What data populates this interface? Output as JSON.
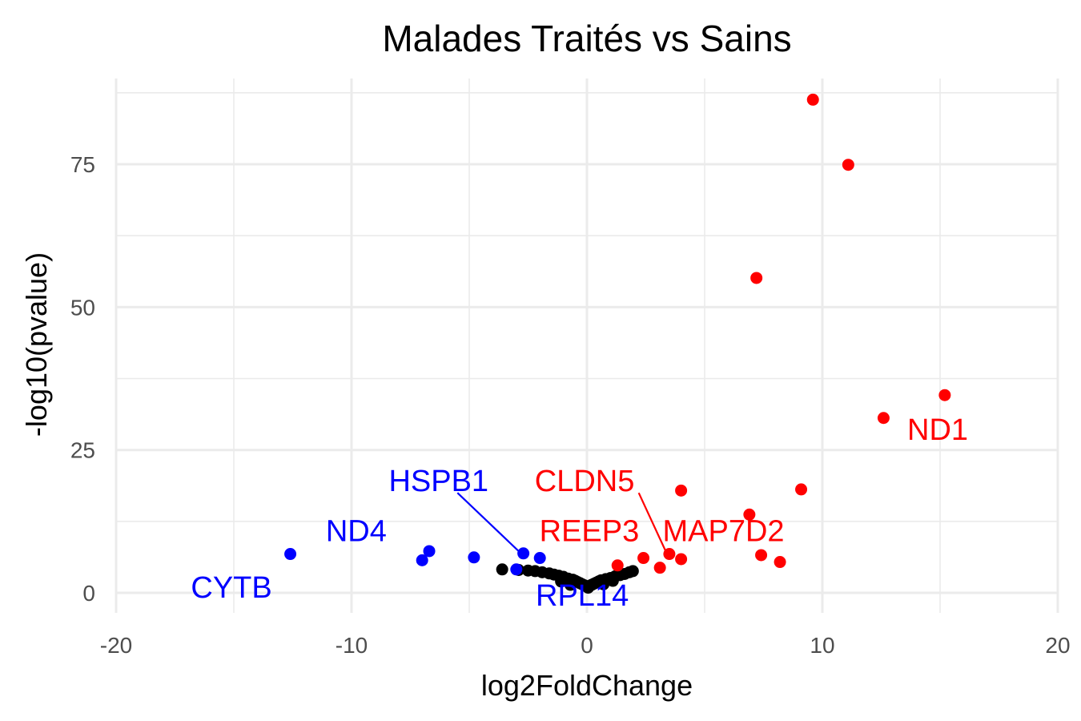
{
  "chart_data": {
    "type": "scatter",
    "title": "Malades Traités vs Sains",
    "xlabel": "log2FoldChange",
    "ylabel": "-log10(pvalue)",
    "xlim": [
      -20,
      20
    ],
    "ylim": [
      -3.5,
      90
    ],
    "xticks": [
      -20,
      -10,
      0,
      10,
      20
    ],
    "yticks": [
      0,
      25,
      50,
      75
    ],
    "grid": true,
    "colors": {
      "up": "#ff0000",
      "down": "#0000ff",
      "ns": "#000000"
    },
    "series": [
      {
        "group": "up",
        "points": [
          [
            9.6,
            86.3
          ],
          [
            11.1,
            74.9
          ],
          [
            7.2,
            55.1
          ],
          [
            15.2,
            34.6
          ],
          [
            12.6,
            30.6
          ],
          [
            4.0,
            17.9
          ],
          [
            9.1,
            18.1
          ],
          [
            6.9,
            13.7
          ],
          [
            3.5,
            6.8
          ],
          [
            4.0,
            5.9
          ],
          [
            7.4,
            6.6
          ],
          [
            8.2,
            5.4
          ],
          [
            2.4,
            6.1
          ],
          [
            3.1,
            4.4
          ],
          [
            1.3,
            4.8
          ]
        ]
      },
      {
        "group": "down",
        "points": [
          [
            -12.6,
            6.8
          ],
          [
            -7.0,
            5.7
          ],
          [
            -6.7,
            7.3
          ],
          [
            -4.8,
            6.2
          ],
          [
            -2.7,
            6.9
          ],
          [
            -2.0,
            6.1
          ],
          [
            -3.0,
            4.1
          ]
        ]
      },
      {
        "group": "ns",
        "points": [
          [
            -3.6,
            4.1
          ],
          [
            -2.9,
            4.0
          ],
          [
            -2.5,
            3.9
          ],
          [
            -2.2,
            3.8
          ],
          [
            -1.9,
            3.6
          ],
          [
            -1.6,
            3.4
          ],
          [
            -1.4,
            3.2
          ],
          [
            -1.2,
            3.0
          ],
          [
            -1.0,
            2.8
          ],
          [
            -0.8,
            2.5
          ],
          [
            -0.6,
            2.3
          ],
          [
            -0.5,
            2.1
          ],
          [
            -0.4,
            1.9
          ],
          [
            -0.3,
            1.7
          ],
          [
            -0.2,
            1.5
          ],
          [
            -0.1,
            1.3
          ],
          [
            0.0,
            1.1
          ],
          [
            0.05,
            0.9
          ],
          [
            0.1,
            1.2
          ],
          [
            0.2,
            1.4
          ],
          [
            0.3,
            1.6
          ],
          [
            0.4,
            1.8
          ],
          [
            0.5,
            2.0
          ],
          [
            0.6,
            2.2
          ],
          [
            0.8,
            2.4
          ],
          [
            1.0,
            2.6
          ],
          [
            1.2,
            2.9
          ],
          [
            1.4,
            3.1
          ],
          [
            1.6,
            3.3
          ],
          [
            1.8,
            3.6
          ],
          [
            1.95,
            3.8
          ],
          [
            -0.7,
            1.4
          ],
          [
            0.7,
            1.5
          ],
          [
            -1.1,
            2.0
          ],
          [
            1.1,
            2.1
          ]
        ]
      }
    ],
    "labels": [
      {
        "text": "ND1",
        "x": 14.9,
        "y": 28.6,
        "color": "#ff0000"
      },
      {
        "text": "CLDN5",
        "x": -0.1,
        "y": 19.6,
        "color": "#ff0000"
      },
      {
        "text": "REEP3",
        "x": 0.1,
        "y": 10.9,
        "color": "#ff0000"
      },
      {
        "text": "MAP7D2",
        "x": 5.8,
        "y": 10.9,
        "color": "#ff0000"
      },
      {
        "text": "HSPB1",
        "x": -6.3,
        "y": 19.6,
        "color": "#0000ff"
      },
      {
        "text": "ND4",
        "x": -9.8,
        "y": 10.9,
        "color": "#0000ff"
      },
      {
        "text": "CYTB",
        "x": -15.1,
        "y": 1.0,
        "color": "#0000ff"
      },
      {
        "text": "RPL14",
        "x": -0.2,
        "y": -0.4,
        "color": "#0000ff"
      }
    ],
    "connectors": [
      {
        "from": [
          -5.5,
          17.5
        ],
        "to": [
          -2.8,
          6.9
        ],
        "color": "#0000ff"
      },
      {
        "from": [
          2.2,
          17.5
        ],
        "to": [
          3.4,
          6.8
        ],
        "color": "#ff0000"
      }
    ]
  }
}
